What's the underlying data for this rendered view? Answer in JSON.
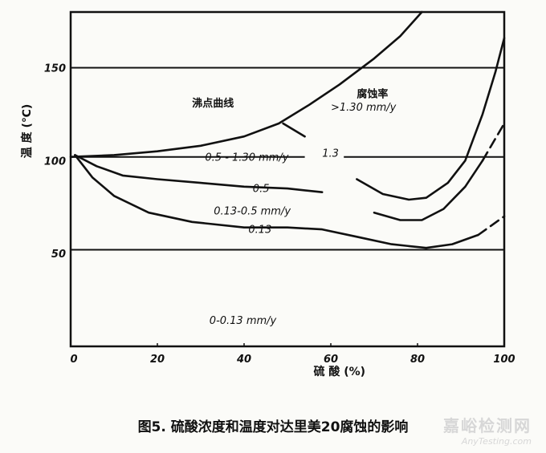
{
  "chart_data": {
    "type": "line",
    "caption": "图5.  硫酸浓度和温度对达里美20腐蚀的影响",
    "xlabel": "硫 酸 (%)",
    "ylabel": "温 度 (℃)",
    "xlim": [
      0,
      100
    ],
    "ylim": [
      0,
      180
    ],
    "x_ticks": [
      "0",
      "20",
      "40",
      "60",
      "80",
      "100"
    ],
    "y_ticks": [
      "50",
      "100",
      "150"
    ],
    "grid": false,
    "series": [
      {
        "name": "沸点曲线",
        "style": "solid",
        "points": [
          [
            0,
            102
          ],
          [
            10,
            103
          ],
          [
            20,
            105
          ],
          [
            30,
            108
          ],
          [
            40,
            113
          ],
          [
            48,
            120
          ],
          [
            55,
            130
          ],
          [
            62,
            141
          ],
          [
            70,
            155
          ],
          [
            76,
            167
          ],
          [
            81,
            180
          ]
        ]
      },
      {
        "name": "1.3",
        "style": "solid",
        "points": [
          [
            49,
            120
          ],
          [
            54,
            113
          ],
          [
            60,
            104
          ],
          [
            66,
            90
          ],
          [
            72,
            82
          ],
          [
            78,
            79
          ],
          [
            82,
            80
          ],
          [
            87,
            88
          ],
          [
            91,
            100
          ],
          [
            95,
            125
          ],
          [
            98,
            148
          ],
          [
            100,
            166
          ]
        ]
      },
      {
        "name": "0.5",
        "style": "solid",
        "points": [
          [
            1,
            103
          ],
          [
            6,
            97
          ],
          [
            12,
            92
          ],
          [
            20,
            90
          ],
          [
            30,
            88
          ],
          [
            40,
            86
          ],
          [
            50,
            85
          ],
          [
            58,
            83
          ],
          [
            64,
            78
          ],
          [
            70,
            72
          ],
          [
            76,
            68
          ],
          [
            81,
            68
          ],
          [
            86,
            74
          ],
          [
            91,
            86
          ],
          [
            95,
            100
          ]
        ]
      },
      {
        "name": "0.5_dashed",
        "style": "dashed",
        "points": [
          [
            95,
            100
          ],
          [
            98,
            112
          ],
          [
            100,
            120
          ]
        ]
      },
      {
        "name": "0.13",
        "style": "solid",
        "points": [
          [
            1,
            103
          ],
          [
            5,
            91
          ],
          [
            10,
            81
          ],
          [
            18,
            72
          ],
          [
            28,
            67
          ],
          [
            40,
            64
          ],
          [
            50,
            64
          ],
          [
            58,
            63
          ],
          [
            66,
            59
          ],
          [
            74,
            55
          ],
          [
            82,
            53
          ],
          [
            88,
            55
          ],
          [
            94,
            60
          ]
        ]
      },
      {
        "name": "0.13_dashed",
        "style": "dashed",
        "points": [
          [
            94,
            60
          ],
          [
            97,
            65
          ],
          [
            100,
            70
          ]
        ]
      }
    ],
    "reference_lines": [
      150,
      102,
      52
    ],
    "annotations": [
      {
        "text": "沸点曲线",
        "x": 28,
        "y": 129,
        "kind": "cjk"
      },
      {
        "text": "腐蚀率",
        "x": 66,
        "y": 134,
        "kind": "cjk"
      },
      {
        "text": ">1.30 mm/y",
        "x": 60,
        "y": 127,
        "kind": "latin"
      },
      {
        "text": "0.5 - 1.30 mm/y",
        "x": 31,
        "y": 100,
        "kind": "latin"
      },
      {
        "text": "1.3",
        "x": 58,
        "y": 102,
        "kind": "latin"
      },
      {
        "text": "0.5",
        "x": 42,
        "y": 83,
        "kind": "latin"
      },
      {
        "text": "0.13-0.5 mm/y",
        "x": 33,
        "y": 71,
        "kind": "latin"
      },
      {
        "text": "0.13",
        "x": 41,
        "y": 61,
        "kind": "latin"
      },
      {
        "text": "0-0.13 mm/y",
        "x": 32,
        "y": 12,
        "kind": "latin"
      }
    ],
    "label_breaks": [
      [
        54,
        63,
        102
      ],
      [
        41,
        47,
        86
      ],
      [
        58,
        66,
        75
      ],
      [
        43,
        49,
        65
      ]
    ]
  },
  "watermark": {
    "cn": "嘉峪检测网",
    "en": "AnyTesting.com"
  }
}
